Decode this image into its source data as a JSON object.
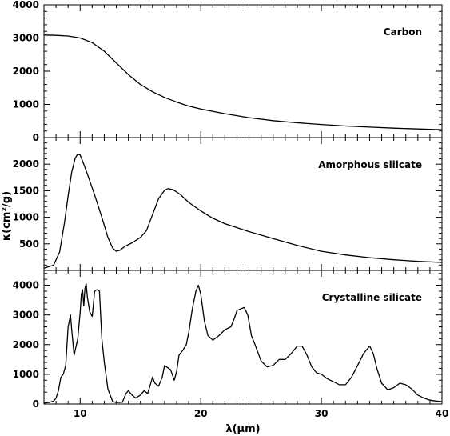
{
  "chart_data": {
    "type": "line",
    "layout": "three vertically stacked panels sharing x axis",
    "xlabel": "λ(μm)",
    "ylabel": "κ(cm²/g)",
    "xlim": [
      7,
      40
    ],
    "x_ticks": [
      10,
      20,
      30,
      40
    ],
    "x_tick_labels": [
      "10",
      "20",
      "30",
      "40"
    ],
    "panels": [
      {
        "label": "Carbon",
        "ylim": [
          0,
          4000
        ],
        "y_ticks": [
          0,
          1000,
          2000,
          3000,
          4000
        ],
        "y_tick_labels": [
          "0",
          "1000",
          "2000",
          "3000",
          "4000"
        ],
        "x": [
          7,
          8,
          9,
          10,
          11,
          12,
          13,
          14,
          15,
          16,
          17,
          18,
          19,
          20,
          22,
          24,
          26,
          28,
          30,
          32,
          34,
          36,
          38,
          40
        ],
        "y": [
          3090,
          3080,
          3060,
          3000,
          2860,
          2600,
          2250,
          1900,
          1600,
          1380,
          1210,
          1070,
          950,
          860,
          720,
          600,
          510,
          445,
          395,
          350,
          315,
          285,
          260,
          235
        ]
      },
      {
        "label": "Amorphous silicate",
        "ylim": [
          0,
          2500
        ],
        "y_ticks": [
          500,
          1000,
          1500,
          2000
        ],
        "y_tick_labels": [
          "500",
          "1000",
          "1500",
          "2000"
        ],
        "x": [
          7,
          7.8,
          8.3,
          8.7,
          9.0,
          9.3,
          9.6,
          9.8,
          10.0,
          10.3,
          10.7,
          11.2,
          11.8,
          12.3,
          12.7,
          13.0,
          13.3,
          13.7,
          14.3,
          15.0,
          15.5,
          16.0,
          16.5,
          17.0,
          17.3,
          17.7,
          18.3,
          19.0,
          20,
          21,
          22,
          24,
          26,
          28,
          30,
          32,
          34,
          36,
          38,
          40
        ],
        "y": [
          40,
          100,
          350,
          900,
          1400,
          1850,
          2120,
          2190,
          2170,
          2000,
          1750,
          1420,
          1000,
          620,
          420,
          360,
          380,
          450,
          520,
          620,
          750,
          1050,
          1350,
          1510,
          1540,
          1520,
          1430,
          1280,
          1120,
          980,
          880,
          730,
          600,
          470,
          360,
          290,
          240,
          200,
          170,
          150
        ]
      },
      {
        "label": "Crystalline silicate",
        "ylim": [
          0,
          4500
        ],
        "y_ticks": [
          0,
          1000,
          2000,
          3000,
          4000
        ],
        "y_tick_labels": [
          "0",
          "1000",
          "2000",
          "3000",
          "4000"
        ],
        "x": [
          7,
          7.5,
          7.8,
          8.0,
          8.2,
          8.4,
          8.6,
          8.8,
          9.0,
          9.2,
          9.3,
          9.5,
          9.8,
          10.0,
          10.1,
          10.2,
          10.3,
          10.4,
          10.5,
          10.6,
          10.8,
          11.0,
          11.2,
          11.4,
          11.6,
          11.8,
          12.0,
          12.3,
          12.7,
          13.0,
          13.5,
          13.8,
          14.0,
          14.3,
          14.6,
          15.0,
          15.3,
          15.6,
          16.0,
          16.2,
          16.5,
          16.8,
          17.0,
          17.5,
          17.8,
          18.0,
          18.2,
          18.5,
          18.8,
          19.0,
          19.3,
          19.6,
          19.8,
          20.0,
          20.3,
          20.6,
          21.0,
          21.5,
          22.0,
          22.5,
          22.8,
          23.0,
          23.3,
          23.6,
          23.9,
          24.2,
          24.5,
          25.0,
          25.5,
          26.0,
          26.5,
          27.0,
          27.5,
          28.0,
          28.4,
          28.8,
          29.2,
          29.6,
          30.0,
          30.5,
          31.0,
          31.5,
          32.0,
          32.5,
          33.0,
          33.5,
          34.0,
          34.3,
          34.6,
          35.0,
          35.5,
          36.0,
          36.5,
          37.0,
          37.5,
          38.0,
          38.5,
          39.0,
          39.5,
          40.0
        ],
        "y": [
          30,
          60,
          100,
          200,
          450,
          900,
          1000,
          1300,
          2600,
          3000,
          2500,
          1650,
          2200,
          3100,
          3700,
          3850,
          3300,
          3900,
          4050,
          3600,
          3100,
          2950,
          3800,
          3850,
          3800,
          2200,
          1400,
          500,
          80,
          50,
          60,
          350,
          450,
          300,
          200,
          300,
          450,
          350,
          900,
          700,
          600,
          900,
          1300,
          1150,
          800,
          1100,
          1650,
          1800,
          2000,
          2400,
          3200,
          3800,
          4000,
          3700,
          2800,
          2300,
          2150,
          2300,
          2500,
          2600,
          2900,
          3150,
          3200,
          3250,
          3000,
          2300,
          2000,
          1450,
          1250,
          1300,
          1500,
          1500,
          1700,
          1950,
          1950,
          1650,
          1250,
          1050,
          1000,
          850,
          750,
          650,
          650,
          900,
          1300,
          1700,
          1950,
          1700,
          1200,
          700,
          480,
          550,
          700,
          650,
          500,
          300,
          200,
          130,
          100,
          80
        ]
      }
    ]
  }
}
